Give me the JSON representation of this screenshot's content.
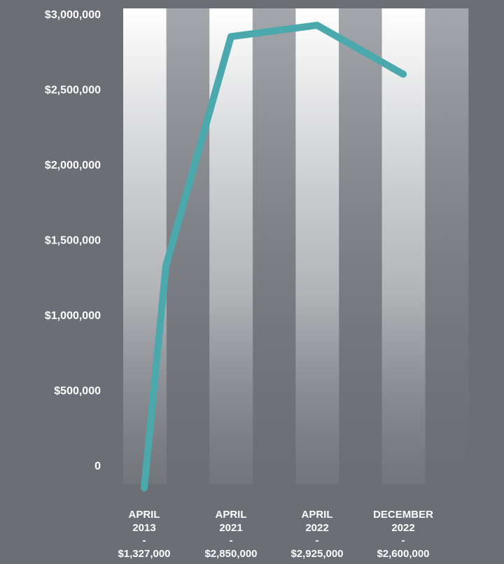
{
  "chart_data": {
    "type": "line",
    "title": "",
    "xlabel": "",
    "ylabel": "",
    "ylim": [
      0,
      3000000
    ],
    "yticks": [
      {
        "value": 0,
        "label": "0"
      },
      {
        "value": 500000,
        "label": "$500,000"
      },
      {
        "value": 1000000,
        "label": "$1,000,000"
      },
      {
        "value": 1500000,
        "label": "$1,500,000"
      },
      {
        "value": 2000000,
        "label": "$2,000,000"
      },
      {
        "value": 2500000,
        "label": "$2,500,000"
      },
      {
        "value": 3000000,
        "label": "$3,000,000"
      }
    ],
    "x_labels": [
      {
        "month": "APRIL",
        "year": "2013",
        "dash": "-",
        "price": "$1,327,000"
      },
      {
        "month": "APRIL",
        "year": "2021",
        "dash": "-",
        "price": "$2,850,000"
      },
      {
        "month": "APRIL",
        "year": "2022",
        "dash": "-",
        "price": "$2,925,000"
      },
      {
        "month": "DECEMBER",
        "year": "2022",
        "dash": "-",
        "price": "$2,600,000"
      }
    ],
    "series": [
      {
        "name": "Value",
        "color": "#4ba9ad",
        "points": [
          {
            "x": 0,
            "y": -150000
          },
          {
            "x": 0.25,
            "y": 1327000
          },
          {
            "x": 1,
            "y": 2850000
          },
          {
            "x": 2,
            "y": 2925000
          },
          {
            "x": 3,
            "y": 2600000
          }
        ]
      }
    ],
    "band_light": "#ffffff",
    "band_dark": "#9a9da1",
    "background": "#6b6e74"
  }
}
